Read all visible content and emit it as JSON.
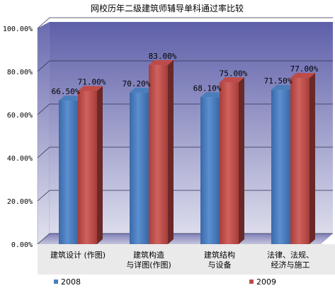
{
  "chart_data": {
    "type": "bar",
    "title": "网校历年二级建筑师辅导单科通过率比较",
    "categories": [
      [
        "建筑设计 (作图)"
      ],
      [
        "建筑构造",
        "与详图(作图)"
      ],
      [
        "建筑结构",
        "与设备"
      ],
      [
        "法律、法规、",
        "经济与施工"
      ]
    ],
    "series": [
      {
        "name": "2008",
        "values": [
          66.5,
          70.2,
          68.1,
          71.5
        ],
        "labels": [
          "66.50%",
          "70.20%",
          "68.10%",
          "71.50%"
        ],
        "color": "#4a7ebb"
      },
      {
        "name": "2009",
        "values": [
          71.0,
          83.0,
          75.0,
          77.0
        ],
        "labels": [
          "71.00%",
          "83.00%",
          "75.00%",
          "77.00%"
        ],
        "color": "#be4b48"
      }
    ],
    "ylim": [
      0,
      100
    ],
    "yticks": [
      "0.00%",
      "20.00%",
      "40.00%",
      "60.00%",
      "80.00%",
      "100.00%"
    ],
    "legend_position": "bottom",
    "grid": true,
    "style": "3d"
  }
}
